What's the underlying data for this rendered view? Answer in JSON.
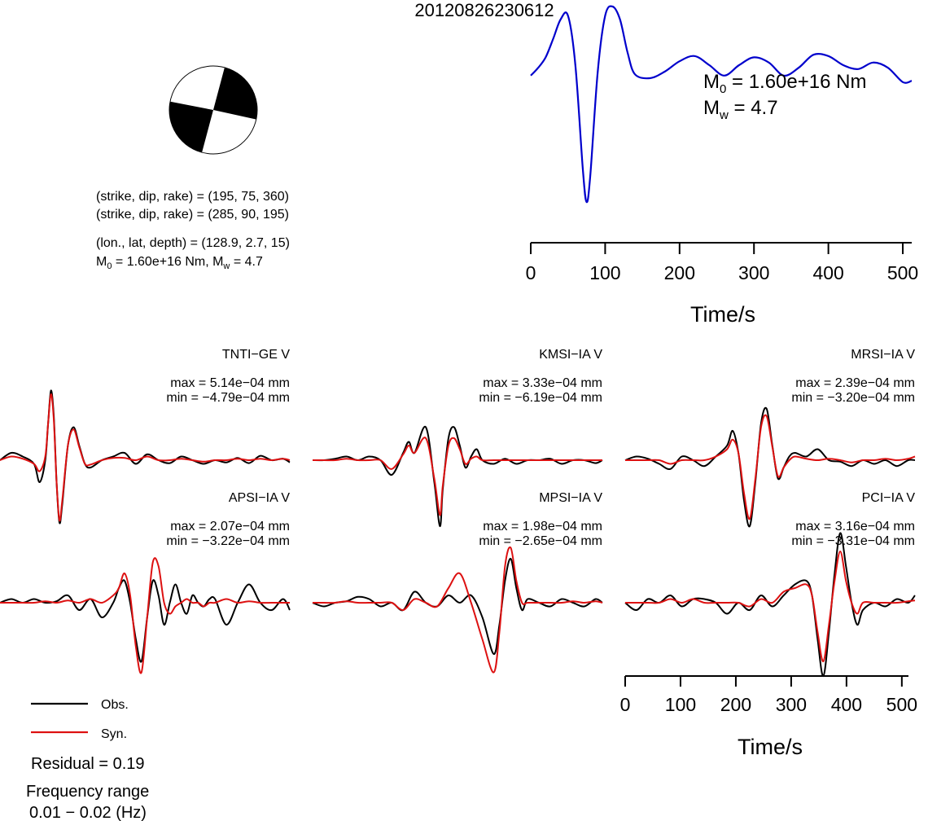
{
  "title": "20120826230612",
  "info": {
    "line1": "(strike, dip, rake) = (195, 75, 360)",
    "line2": "(strike, dip, rake) = (285, 90, 195)",
    "line3": "(lon., lat, depth) = (128.9, 2.7, 15)",
    "line4_m0": "M",
    "line4_m0_sub": "0",
    "line4_mid": " = 1.60e+16 Nm, M",
    "line4_mw_sub": "w",
    "line4_end": " = 4.7"
  },
  "stf": {
    "m0_label": "M",
    "m0_sub": "0",
    "m0_value": " = 1.60e+16 Nm",
    "mw_label": "M",
    "mw_sub": "w",
    "mw_value": " = 4.7",
    "color": "#0000cc",
    "xlabel": "Time/s",
    "xticks": [
      "0",
      "100",
      "200",
      "300",
      "400",
      "500"
    ]
  },
  "waveform_axis": {
    "xlabel": "Time/s",
    "xticks": [
      "0",
      "100",
      "200",
      "300",
      "400",
      "500"
    ]
  },
  "legend": {
    "obs_label": "Obs.",
    "syn_label": "Syn.",
    "obs_color": "#000000",
    "syn_color": "#dd1111"
  },
  "residual": "Residual = 0.19",
  "frequency_title": "Frequency range",
  "frequency_value": "0.01 − 0.02 (Hz)",
  "chart_data": [
    {
      "type": "line",
      "title": "",
      "xlabel": "Time/s",
      "ylabel": "",
      "xlim": [
        0,
        512
      ],
      "series": [
        {
          "name": "",
          "x": [
            0,
            10,
            20,
            30,
            40,
            50,
            60,
            70,
            75,
            80,
            90,
            100,
            110,
            120,
            130,
            140,
            160,
            180,
            200,
            220,
            240,
            260,
            280,
            300,
            320,
            340,
            360,
            380,
            400,
            420,
            440,
            460,
            480,
            500,
            512
          ],
          "y": [
            0.42,
            0.48,
            0.56,
            0.7,
            0.85,
            0.88,
            0.5,
            -0.3,
            -0.55,
            -0.35,
            0.45,
            0.88,
            0.95,
            0.85,
            0.6,
            0.43,
            0.4,
            0.45,
            0.53,
            0.57,
            0.5,
            0.42,
            0.5,
            0.56,
            0.52,
            0.42,
            0.48,
            0.58,
            0.57,
            0.5,
            0.47,
            0.52,
            0.48,
            0.37,
            0.38
          ]
        }
      ]
    },
    {
      "type": "line",
      "title": "TNTI−GE V",
      "max": "max = 5.14e−04 mm",
      "min": "min = −4.79e−04 mm",
      "xlim": [
        0,
        512
      ],
      "series": [
        {
          "name": "Obs.",
          "x": [
            0,
            20,
            40,
            60,
            70,
            80,
            85,
            90,
            95,
            100,
            105,
            110,
            120,
            130,
            140,
            150,
            160,
            180,
            200,
            220,
            240,
            260,
            280,
            300,
            320,
            340,
            360,
            380,
            400,
            420,
            440,
            460,
            480,
            500,
            512
          ],
          "y": [
            0.0,
            0.1,
            0.05,
            -0.05,
            -0.3,
            0.0,
            0.5,
            0.95,
            0.6,
            -0.3,
            -0.85,
            -0.6,
            0.2,
            0.45,
            0.2,
            -0.05,
            -0.1,
            0.0,
            0.05,
            0.1,
            -0.05,
            0.08,
            0.0,
            -0.04,
            0.05,
            0.0,
            -0.05,
            0.0,
            -0.03,
            0.03,
            -0.04,
            0.06,
            0.0,
            0.02,
            -0.03
          ]
        },
        {
          "name": "Syn.",
          "x": [
            0,
            20,
            40,
            60,
            70,
            80,
            85,
            90,
            95,
            100,
            105,
            110,
            120,
            130,
            140,
            150,
            160,
            180,
            200,
            220,
            240,
            260,
            280,
            300,
            320,
            340,
            360,
            380,
            400,
            420,
            440,
            460,
            480,
            500,
            512
          ],
          "y": [
            0.0,
            0.05,
            0.02,
            -0.05,
            -0.15,
            0.05,
            0.5,
            0.9,
            0.55,
            -0.3,
            -0.82,
            -0.55,
            0.2,
            0.42,
            0.18,
            -0.05,
            -0.06,
            0.0,
            0.03,
            0.03,
            0.0,
            0.05,
            0.0,
            0.0,
            0.02,
            0.0,
            -0.02,
            0.0,
            0.0,
            0.02,
            0.0,
            0.02,
            0.0,
            0.02,
            0.0
          ]
        }
      ]
    },
    {
      "type": "line",
      "title": "KMSI−IA V",
      "max": "max = 3.33e−04 mm",
      "min": "min = −6.19e−04 mm",
      "xlim": [
        0,
        512
      ],
      "series": [
        {
          "name": "Obs.",
          "x": [
            0,
            20,
            40,
            60,
            80,
            100,
            120,
            140,
            160,
            170,
            180,
            200,
            215,
            225,
            230,
            240,
            250,
            260,
            270,
            280,
            290,
            300,
            320,
            340,
            360,
            380,
            400,
            420,
            440,
            460,
            480,
            500,
            512
          ],
          "y": [
            0.0,
            0.0,
            0.02,
            0.05,
            0.0,
            0.05,
            0.0,
            -0.2,
            0.1,
            0.25,
            0.1,
            0.45,
            -0.3,
            -0.9,
            -0.4,
            0.3,
            0.45,
            0.2,
            -0.1,
            0.05,
            0.15,
            0.0,
            -0.05,
            0.02,
            -0.05,
            0.0,
            0.0,
            0.02,
            -0.05,
            0.0,
            0.0,
            -0.04,
            0.0
          ]
        },
        {
          "name": "Syn.",
          "x": [
            0,
            20,
            40,
            60,
            80,
            100,
            120,
            140,
            160,
            170,
            180,
            200,
            215,
            225,
            230,
            240,
            250,
            260,
            270,
            280,
            290,
            300,
            320,
            340,
            360,
            380,
            400,
            420,
            440,
            460,
            480,
            500,
            512
          ],
          "y": [
            0.0,
            0.0,
            0.0,
            0.02,
            0.0,
            0.0,
            0.0,
            -0.12,
            0.08,
            0.2,
            0.1,
            0.3,
            -0.25,
            -0.75,
            -0.35,
            0.2,
            0.3,
            0.15,
            -0.05,
            0.02,
            0.05,
            0.0,
            0.0,
            0.0,
            0.0,
            0.0,
            0.0,
            0.0,
            0.0,
            0.0,
            0.0,
            0.0,
            0.0
          ]
        }
      ]
    },
    {
      "type": "line",
      "title": "MRSI−IA V",
      "max": "max = 2.39e−04 mm",
      "min": "min = −3.20e−04 mm",
      "xlim": [
        0,
        512
      ],
      "series": [
        {
          "name": "Obs.",
          "x": [
            0,
            20,
            40,
            60,
            80,
            100,
            120,
            140,
            160,
            180,
            190,
            200,
            210,
            220,
            230,
            240,
            250,
            260,
            270,
            280,
            290,
            300,
            320,
            340,
            360,
            380,
            400,
            420,
            440,
            460,
            480,
            500,
            512
          ],
          "y": [
            0.0,
            0.05,
            0.02,
            -0.05,
            -0.12,
            0.05,
            0.0,
            -0.08,
            0.05,
            0.2,
            0.4,
            0.1,
            -0.55,
            -0.9,
            -0.3,
            0.5,
            0.7,
            0.2,
            -0.25,
            -0.1,
            0.05,
            0.1,
            0.05,
            0.15,
            0.0,
            -0.02,
            -0.08,
            0.0,
            -0.05,
            0.0,
            -0.08,
            0.0,
            0.0
          ]
        },
        {
          "name": "Syn.",
          "x": [
            0,
            20,
            40,
            60,
            80,
            100,
            120,
            140,
            160,
            180,
            190,
            200,
            210,
            220,
            230,
            240,
            250,
            260,
            270,
            280,
            290,
            300,
            320,
            340,
            360,
            380,
            400,
            420,
            440,
            460,
            480,
            500,
            512
          ],
          "y": [
            0.0,
            0.0,
            0.0,
            0.0,
            -0.05,
            0.0,
            0.0,
            0.0,
            0.05,
            0.15,
            0.28,
            0.1,
            -0.45,
            -0.8,
            -0.25,
            0.45,
            0.6,
            0.18,
            -0.22,
            -0.1,
            0.0,
            0.05,
            0.02,
            0.0,
            0.02,
            0.0,
            -0.03,
            0.0,
            0.0,
            0.02,
            0.0,
            0.02,
            0.05
          ]
        }
      ]
    },
    {
      "type": "line",
      "title": "APSI−IA V",
      "max": "max = 2.07e−04 mm",
      "min": "min = −3.22e−04 mm",
      "xlim": [
        0,
        512
      ],
      "series": [
        {
          "name": "Obs.",
          "x": [
            0,
            20,
            40,
            60,
            80,
            100,
            120,
            140,
            160,
            180,
            200,
            210,
            220,
            230,
            240,
            250,
            260,
            270,
            280,
            290,
            300,
            310,
            320,
            330,
            340,
            350,
            360,
            370,
            380,
            400,
            420,
            440,
            460,
            480,
            500,
            512
          ],
          "y": [
            0.0,
            0.05,
            0.0,
            0.05,
            0.0,
            0.02,
            0.1,
            -0.1,
            0.05,
            -0.2,
            0.0,
            0.2,
            0.3,
            0.0,
            -0.5,
            -0.8,
            -0.2,
            0.3,
            0.1,
            -0.3,
            0.0,
            0.25,
            0.0,
            -0.15,
            0.1,
            0.0,
            -0.05,
            0.05,
            0.05,
            -0.3,
            0.0,
            0.25,
            0.0,
            -0.1,
            0.05,
            -0.1
          ]
        },
        {
          "name": "Syn.",
          "x": [
            0,
            20,
            40,
            60,
            80,
            100,
            120,
            140,
            160,
            180,
            200,
            210,
            220,
            230,
            240,
            250,
            260,
            270,
            280,
            290,
            300,
            310,
            320,
            330,
            340,
            350,
            360,
            370,
            380,
            400,
            420,
            440,
            460,
            480,
            500,
            512
          ],
          "y": [
            0.0,
            0.0,
            0.0,
            0.0,
            0.02,
            0.0,
            0.03,
            0.0,
            0.05,
            0.0,
            0.1,
            0.2,
            0.4,
            0.1,
            -0.6,
            -0.95,
            -0.2,
            0.55,
            0.5,
            0.0,
            -0.15,
            -0.05,
            0.0,
            0.05,
            0.0,
            0.0,
            -0.05,
            0.0,
            0.0,
            0.05,
            0.0,
            0.02,
            0.0,
            0.0,
            0.0,
            0.0
          ]
        }
      ]
    },
    {
      "type": "line",
      "title": "MPSI−IA V",
      "max": "max = 1.98e−04 mm",
      "min": "min = −2.65e−04 mm",
      "xlim": [
        0,
        512
      ],
      "series": [
        {
          "name": "Obs.",
          "x": [
            0,
            20,
            40,
            60,
            80,
            100,
            120,
            140,
            160,
            180,
            200,
            220,
            240,
            260,
            280,
            300,
            320,
            330,
            340,
            350,
            360,
            370,
            380,
            400,
            420,
            440,
            460,
            480,
            500,
            512
          ],
          "y": [
            0.0,
            -0.05,
            0.0,
            0.02,
            0.08,
            0.05,
            -0.05,
            0.0,
            -0.1,
            0.15,
            0.0,
            -0.05,
            0.1,
            0.0,
            0.1,
            -0.2,
            -0.7,
            -0.3,
            0.3,
            0.6,
            0.2,
            -0.1,
            0.05,
            0.0,
            -0.05,
            0.05,
            0.0,
            -0.05,
            0.05,
            0.0
          ]
        },
        {
          "name": "Syn.",
          "x": [
            0,
            20,
            40,
            60,
            80,
            100,
            120,
            140,
            160,
            180,
            200,
            220,
            240,
            260,
            280,
            300,
            320,
            330,
            340,
            350,
            360,
            370,
            380,
            400,
            420,
            440,
            460,
            480,
            500,
            512
          ],
          "y": [
            0.0,
            0.0,
            0.0,
            0.02,
            0.0,
            0.0,
            0.0,
            0.0,
            -0.1,
            0.05,
            0.0,
            -0.05,
            0.2,
            0.4,
            0.0,
            -0.5,
            -0.95,
            -0.4,
            0.5,
            0.75,
            0.3,
            0.0,
            0.0,
            0.0,
            0.0,
            0.0,
            0.02,
            0.0,
            0.02,
            0.0
          ]
        }
      ]
    },
    {
      "type": "line",
      "title": "PCI−IA V",
      "max": "max = 3.16e−04 mm",
      "min": "min = −3.31e−04 mm",
      "xlim": [
        0,
        512
      ],
      "series": [
        {
          "name": "Obs.",
          "x": [
            0,
            20,
            40,
            60,
            80,
            100,
            120,
            140,
            160,
            180,
            200,
            220,
            240,
            260,
            280,
            300,
            320,
            330,
            340,
            350,
            360,
            370,
            380,
            390,
            400,
            410,
            420,
            440,
            460,
            480,
            500,
            512
          ],
          "y": [
            0.0,
            -0.1,
            0.05,
            0.0,
            0.1,
            -0.05,
            0.05,
            0.05,
            0.0,
            -0.15,
            0.0,
            -0.1,
            0.1,
            -0.05,
            0.1,
            0.25,
            0.3,
            0.1,
            -0.5,
            -1.0,
            -0.4,
            0.4,
            0.95,
            0.5,
            0.0,
            -0.3,
            -0.1,
            0.0,
            -0.05,
            0.05,
            0.0,
            0.1
          ]
        },
        {
          "name": "Syn.",
          "x": [
            0,
            20,
            40,
            60,
            80,
            100,
            120,
            140,
            160,
            180,
            200,
            220,
            240,
            260,
            280,
            300,
            320,
            330,
            340,
            350,
            360,
            370,
            380,
            390,
            400,
            410,
            420,
            440,
            460,
            480,
            500,
            512
          ],
          "y": [
            0.0,
            0.0,
            0.0,
            0.0,
            0.05,
            0.0,
            0.05,
            0.0,
            0.0,
            0.0,
            0.0,
            -0.05,
            0.05,
            0.0,
            0.15,
            0.2,
            0.25,
            0.1,
            -0.4,
            -0.8,
            -0.3,
            0.3,
            0.7,
            0.3,
            0.0,
            -0.15,
            0.0,
            0.0,
            0.0,
            0.0,
            0.02,
            0.03
          ]
        }
      ]
    }
  ]
}
